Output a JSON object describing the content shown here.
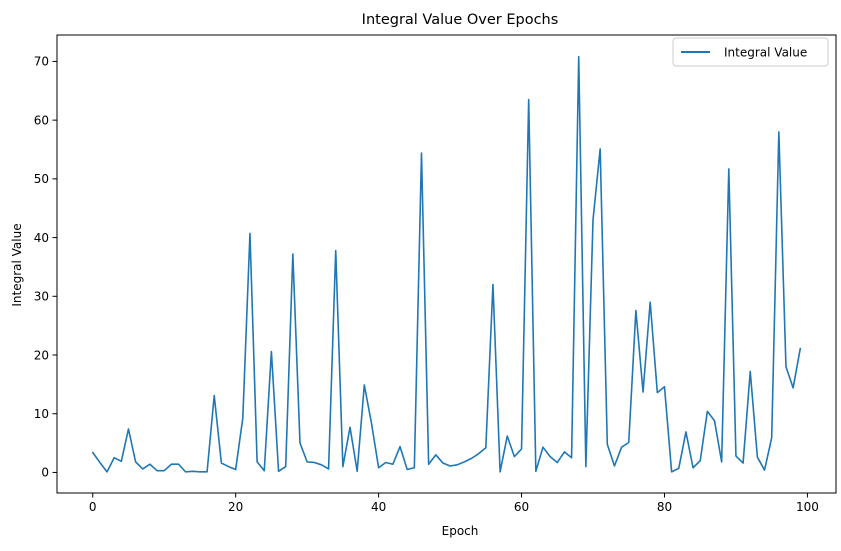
{
  "chart_data": {
    "type": "line",
    "title": "Integral Value Over Epochs",
    "xlabel": "Epoch",
    "ylabel": "Integral Value",
    "xlim": [
      -5,
      104
    ],
    "ylim": [
      -3.5,
      74.5
    ],
    "xticks": [
      0,
      20,
      40,
      60,
      80,
      100
    ],
    "yticks": [
      0,
      10,
      20,
      30,
      40,
      50,
      60,
      70
    ],
    "grid": false,
    "legend": "top-right",
    "series": [
      {
        "name": "Integral Value",
        "color": "#1f77b4",
        "x": [
          0,
          1,
          2,
          3,
          4,
          5,
          6,
          7,
          8,
          9,
          10,
          11,
          12,
          13,
          14,
          15,
          16,
          17,
          18,
          19,
          20,
          21,
          22,
          23,
          24,
          25,
          26,
          27,
          28,
          29,
          30,
          31,
          32,
          33,
          34,
          35,
          36,
          37,
          38,
          39,
          40,
          41,
          42,
          43,
          44,
          45,
          46,
          47,
          48,
          49,
          50,
          51,
          52,
          53,
          54,
          55,
          56,
          57,
          58,
          59,
          60,
          61,
          62,
          63,
          64,
          65,
          66,
          67,
          68,
          69,
          70,
          71,
          72,
          73,
          74,
          75,
          76,
          77,
          78,
          79,
          80,
          81,
          82,
          83,
          84,
          85,
          86,
          87,
          88,
          89,
          90,
          91,
          92,
          93,
          94,
          95,
          96,
          97,
          98,
          99
        ],
        "values": [
          3.4,
          1.7,
          0.1,
          2.5,
          1.9,
          7.4,
          1.8,
          0.6,
          1.4,
          0.3,
          0.3,
          1.4,
          1.4,
          0.1,
          0.2,
          0.1,
          0.1,
          13.1,
          1.6,
          1.0,
          0.5,
          9.3,
          40.7,
          1.8,
          0.3,
          20.6,
          0.2,
          1.0,
          37.2,
          5.0,
          1.8,
          1.7,
          1.3,
          0.6,
          37.8,
          1.0,
          7.7,
          0.2,
          14.9,
          8.4,
          0.8,
          1.7,
          1.4,
          4.4,
          0.5,
          0.8,
          54.4,
          1.4,
          3.0,
          1.6,
          1.1,
          1.3,
          1.8,
          2.4,
          3.2,
          4.2,
          32.0,
          0.1,
          6.2,
          2.7,
          4.0,
          63.5,
          0.2,
          4.3,
          2.7,
          1.7,
          3.5,
          2.5,
          70.8,
          1.0,
          43.0,
          55.1,
          4.8,
          1.1,
          4.3,
          5.1,
          27.6,
          13.7,
          29.0,
          13.6,
          14.6,
          0.1,
          0.7,
          6.9,
          0.8,
          2.0,
          10.4,
          8.8,
          1.8,
          51.7,
          2.8,
          1.6,
          17.2,
          2.6,
          0.4,
          5.9,
          58.0,
          18.0,
          14.4,
          21.1
        ]
      }
    ]
  }
}
